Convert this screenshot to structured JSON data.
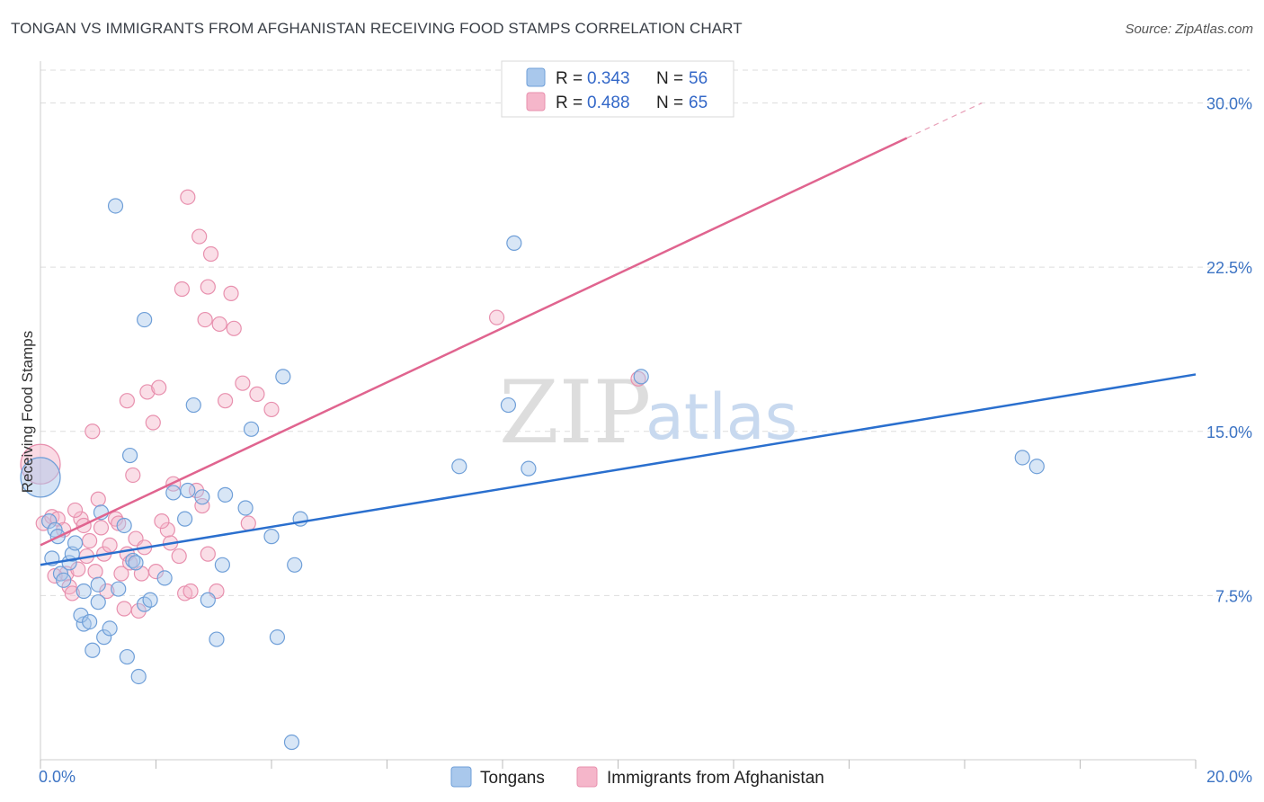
{
  "title": "TONGAN VS IMMIGRANTS FROM AFGHANISTAN RECEIVING FOOD STAMPS CORRELATION CHART",
  "source": "Source: ZipAtlas.com",
  "watermark": {
    "zip": "ZIP",
    "atlas": "atlas"
  },
  "legend_top": [
    {
      "r_label": "R = ",
      "r_value": "0.343",
      "n_label": "N = ",
      "n_value": "56"
    },
    {
      "r_label": "R = ",
      "r_value": "0.488",
      "n_label": "N = ",
      "n_value": "65"
    }
  ],
  "legend_bottom": [
    "Tongans",
    "Immigrants from Afghanistan"
  ],
  "colors": {
    "blue_fill": "#a9c8ec",
    "blue_stroke": "#6f9fd8",
    "blue_line": "#2a6fce",
    "pink_fill": "#f5b6ca",
    "pink_stroke": "#e890ae",
    "pink_line": "#e0648f",
    "tick_text": "#3d74c4",
    "grid": "#dddddd"
  },
  "chart_data": {
    "type": "scatter",
    "title": "TONGAN VS IMMIGRANTS FROM AFGHANISTAN RECEIVING FOOD STAMPS CORRELATION CHART",
    "xlabel": "",
    "ylabel": "Receiving Food Stamps",
    "xlim": [
      0,
      20
    ],
    "ylim": [
      0,
      31.5
    ],
    "x_tick_labels": [
      "0.0%",
      "20.0%"
    ],
    "y_ticks": [
      7.5,
      15.0,
      22.5,
      30.0
    ],
    "y_tick_labels": [
      "7.5%",
      "15.0%",
      "22.5%",
      "30.0%"
    ],
    "grid": true,
    "series": [
      {
        "name": "Tongans",
        "R": 0.343,
        "N": 56,
        "trend": {
          "x0": 0,
          "y0": 8.9,
          "x1": 20,
          "y1": 17.6
        },
        "points": [
          [
            0.0,
            12.9
          ],
          [
            0.15,
            10.9
          ],
          [
            0.25,
            10.5
          ],
          [
            0.35,
            8.5
          ],
          [
            0.4,
            8.2
          ],
          [
            0.5,
            9.0
          ],
          [
            0.55,
            9.4
          ],
          [
            0.6,
            9.9
          ],
          [
            0.75,
            7.7
          ],
          [
            1.0,
            7.2
          ],
          [
            1.05,
            11.3
          ],
          [
            0.2,
            9.2
          ],
          [
            0.3,
            10.2
          ],
          [
            0.75,
            6.2
          ],
          [
            0.9,
            5.0
          ],
          [
            1.1,
            5.6
          ],
          [
            1.2,
            6.0
          ],
          [
            1.35,
            7.8
          ],
          [
            1.45,
            10.7
          ],
          [
            1.5,
            4.7
          ],
          [
            1.6,
            9.1
          ],
          [
            1.65,
            9.0
          ],
          [
            1.7,
            3.8
          ],
          [
            1.8,
            7.1
          ],
          [
            1.9,
            7.3
          ],
          [
            2.15,
            8.3
          ],
          [
            2.3,
            12.2
          ],
          [
            2.5,
            11.0
          ],
          [
            2.55,
            12.3
          ],
          [
            2.65,
            16.2
          ],
          [
            2.8,
            12.0
          ],
          [
            2.9,
            7.3
          ],
          [
            3.05,
            5.5
          ],
          [
            3.15,
            8.9
          ],
          [
            3.2,
            12.1
          ],
          [
            3.55,
            11.5
          ],
          [
            3.65,
            15.1
          ],
          [
            4.0,
            10.2
          ],
          [
            4.1,
            5.6
          ],
          [
            4.2,
            17.5
          ],
          [
            4.35,
            0.8
          ],
          [
            4.4,
            8.9
          ],
          [
            4.5,
            11.0
          ],
          [
            1.3,
            25.3
          ],
          [
            1.8,
            20.1
          ],
          [
            1.55,
            13.9
          ],
          [
            7.25,
            13.4
          ],
          [
            8.1,
            16.2
          ],
          [
            8.45,
            13.3
          ],
          [
            8.2,
            23.6
          ],
          [
            10.4,
            17.5
          ],
          [
            17.0,
            13.8
          ],
          [
            17.25,
            13.4
          ],
          [
            0.7,
            6.6
          ],
          [
            0.85,
            6.3
          ],
          [
            1.0,
            8.0
          ]
        ]
      },
      {
        "name": "Immigrants from Afghanistan",
        "R": 0.488,
        "N": 65,
        "trend": {
          "x0": 0,
          "y0": 9.8,
          "x1": 15,
          "y1": 28.4
        },
        "trend_dashed": {
          "x0": 15,
          "y0": 28.4,
          "x1": 16.3,
          "y1": 30.0
        },
        "points": [
          [
            0.0,
            13.5
          ],
          [
            0.05,
            10.8
          ],
          [
            0.2,
            11.1
          ],
          [
            0.3,
            11.0
          ],
          [
            0.45,
            8.5
          ],
          [
            0.5,
            7.9
          ],
          [
            0.55,
            7.6
          ],
          [
            0.65,
            8.7
          ],
          [
            0.7,
            11.0
          ],
          [
            0.75,
            10.7
          ],
          [
            0.8,
            9.3
          ],
          [
            0.85,
            10.0
          ],
          [
            1.0,
            11.9
          ],
          [
            1.05,
            10.6
          ],
          [
            1.1,
            9.4
          ],
          [
            1.2,
            9.8
          ],
          [
            1.3,
            11.0
          ],
          [
            1.4,
            8.5
          ],
          [
            1.45,
            6.9
          ],
          [
            1.5,
            9.4
          ],
          [
            1.6,
            13.0
          ],
          [
            1.7,
            6.8
          ],
          [
            1.75,
            8.5
          ],
          [
            1.85,
            16.8
          ],
          [
            1.95,
            15.4
          ],
          [
            2.05,
            17.0
          ],
          [
            2.2,
            10.5
          ],
          [
            2.3,
            12.6
          ],
          [
            2.4,
            9.3
          ],
          [
            2.5,
            7.6
          ],
          [
            2.6,
            7.7
          ],
          [
            2.7,
            12.3
          ],
          [
            2.8,
            11.6
          ],
          [
            2.9,
            9.4
          ],
          [
            3.05,
            7.7
          ],
          [
            3.2,
            16.4
          ],
          [
            3.5,
            17.2
          ],
          [
            3.6,
            10.8
          ],
          [
            3.75,
            16.7
          ],
          [
            4.0,
            16.0
          ],
          [
            0.9,
            15.0
          ],
          [
            1.5,
            16.4
          ],
          [
            2.55,
            25.7
          ],
          [
            2.75,
            23.9
          ],
          [
            2.95,
            23.1
          ],
          [
            2.45,
            21.5
          ],
          [
            2.9,
            21.6
          ],
          [
            3.3,
            21.3
          ],
          [
            2.85,
            20.1
          ],
          [
            3.1,
            19.9
          ],
          [
            3.35,
            19.7
          ],
          [
            7.9,
            20.2
          ],
          [
            10.35,
            17.4
          ],
          [
            0.25,
            8.4
          ],
          [
            0.4,
            10.5
          ],
          [
            0.6,
            11.4
          ],
          [
            0.95,
            8.6
          ],
          [
            1.15,
            7.7
          ],
          [
            1.35,
            10.8
          ],
          [
            1.55,
            9.0
          ],
          [
            1.65,
            10.1
          ],
          [
            1.8,
            9.7
          ],
          [
            2.0,
            8.6
          ],
          [
            2.1,
            10.9
          ],
          [
            2.25,
            9.9
          ]
        ]
      }
    ]
  }
}
